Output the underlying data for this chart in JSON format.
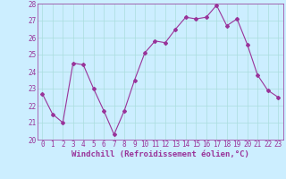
{
  "x": [
    0,
    1,
    2,
    3,
    4,
    5,
    6,
    7,
    8,
    9,
    10,
    11,
    12,
    13,
    14,
    15,
    16,
    17,
    18,
    19,
    20,
    21,
    22,
    23
  ],
  "y": [
    22.7,
    21.5,
    21.0,
    24.5,
    24.4,
    23.0,
    21.7,
    20.3,
    21.7,
    23.5,
    25.1,
    25.8,
    25.7,
    26.5,
    27.2,
    27.1,
    27.2,
    27.9,
    26.7,
    27.1,
    25.6,
    23.8,
    22.9,
    22.5
  ],
  "line_color": "#993399",
  "marker": "D",
  "marker_size": 2,
  "bg_color": "#cceeff",
  "grid_color": "#aadddd",
  "spine_color": "#993399",
  "xlabel": "Windchill (Refroidissement éolien,°C)",
  "xlabel_color": "#993399",
  "tick_color": "#993399",
  "ylim": [
    20,
    28
  ],
  "xlim": [
    -0.5,
    23.5
  ],
  "yticks": [
    20,
    21,
    22,
    23,
    24,
    25,
    26,
    27,
    28
  ],
  "xticks": [
    0,
    1,
    2,
    3,
    4,
    5,
    6,
    7,
    8,
    9,
    10,
    11,
    12,
    13,
    14,
    15,
    16,
    17,
    18,
    19,
    20,
    21,
    22,
    23
  ],
  "label_fontsize": 6.5,
  "tick_fontsize": 5.5
}
